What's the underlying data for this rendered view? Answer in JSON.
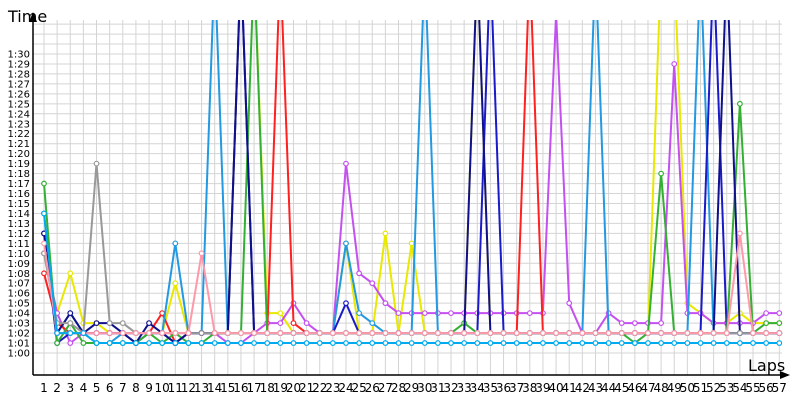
{
  "chart_data": {
    "type": "line",
    "ylabel": "Time",
    "xlabel": "Laps",
    "ylim_seconds": [
      60,
      90
    ],
    "y_ticks": [
      "1:00",
      "1:01",
      "1:02",
      "1:03",
      "1:04",
      "1:05",
      "1:06",
      "1:07",
      "1:08",
      "1:09",
      "1:10",
      "1:11",
      "1:12",
      "1:13",
      "1:14",
      "1:15",
      "1:16",
      "1:17",
      "1:18",
      "1:19",
      "1:20",
      "1:21",
      "1:22",
      "1:23",
      "1:24",
      "1:25",
      "1:26",
      "1:27",
      "1:28",
      "1:29",
      "1:30"
    ],
    "x_ticks": [
      "1",
      "2",
      "3",
      "4",
      "5",
      "6",
      "7",
      "8",
      "9",
      "10",
      "11",
      "12",
      "13",
      "14",
      "15",
      "16",
      "17",
      "18",
      "19",
      "20",
      "21",
      "22",
      "23",
      "24",
      "25",
      "26",
      "27",
      "28",
      "29",
      "30",
      "31",
      "32",
      "33",
      "34",
      "35",
      "36",
      "37",
      "38",
      "39",
      "40",
      "41",
      "42",
      "43",
      "44",
      "45",
      "46",
      "47",
      "48",
      "49",
      "50",
      "51",
      "52",
      "53",
      "54",
      "55",
      "56",
      "57"
    ],
    "grid": true,
    "legend": "none",
    "series": [
      {
        "color": "#e8e800",
        "values": [
          70,
          64,
          68,
          63,
          63,
          62,
          62,
          62,
          62,
          62,
          67,
          62,
          62,
          62,
          62,
          99,
          99,
          64,
          64,
          62,
          62,
          62,
          62,
          71,
          62,
          62,
          72,
          62,
          71,
          62,
          62,
          62,
          62,
          99,
          62,
          62,
          62,
          62,
          62,
          62,
          62,
          62,
          62,
          62,
          62,
          62,
          62,
          99,
          99,
          65,
          64,
          63,
          63,
          64,
          63,
          63,
          63
        ]
      },
      {
        "color": "#c450f0",
        "values": [
          70,
          64,
          61,
          62,
          62,
          62,
          62,
          62,
          62,
          62,
          62,
          62,
          62,
          62,
          61,
          61,
          62,
          63,
          63,
          65,
          63,
          62,
          62,
          79,
          68,
          67,
          65,
          64,
          64,
          64,
          64,
          64,
          64,
          64,
          64,
          64,
          64,
          64,
          64,
          94,
          65,
          62,
          62,
          64,
          63,
          63,
          63,
          63,
          89,
          64,
          64,
          63,
          63,
          63,
          63,
          64,
          64
        ]
      },
      {
        "color": "#ff2020",
        "values": [
          68,
          63,
          62,
          62,
          62,
          62,
          62,
          62,
          62,
          64,
          61,
          62,
          62,
          62,
          62,
          62,
          62,
          62,
          99,
          63,
          62,
          62,
          62,
          62,
          62,
          62,
          62,
          62,
          62,
          62,
          62,
          62,
          62,
          62,
          62,
          62,
          62,
          99,
          62,
          62,
          62,
          62,
          62,
          62,
          62,
          62,
          62,
          62,
          62,
          62,
          62,
          62,
          62,
          62,
          62,
          62,
          62
        ]
      },
      {
        "color": "#2299e0",
        "values": [
          74,
          62,
          64,
          62,
          61,
          61,
          62,
          62,
          62,
          62,
          71,
          62,
          62,
          99,
          62,
          62,
          62,
          62,
          62,
          62,
          62,
          62,
          62,
          71,
          64,
          63,
          62,
          62,
          62,
          99,
          62,
          62,
          62,
          62,
          62,
          62,
          62,
          62,
          62,
          62,
          62,
          62,
          99,
          62,
          62,
          62,
          62,
          62,
          62,
          62,
          99,
          62,
          62,
          62,
          62,
          62,
          62
        ]
      },
      {
        "color": "#1a1ac8",
        "values": [
          72,
          61,
          62,
          62,
          62,
          62,
          62,
          61,
          62,
          62,
          61,
          62,
          62,
          62,
          62,
          99,
          62,
          62,
          62,
          62,
          62,
          62,
          62,
          65,
          62,
          62,
          62,
          62,
          62,
          62,
          62,
          62,
          62,
          62,
          99,
          62,
          62,
          62,
          62,
          62,
          62,
          62,
          62,
          62,
          62,
          62,
          62,
          62,
          62,
          62,
          62,
          99,
          62,
          62,
          62,
          62,
          62
        ]
      },
      {
        "color": "#33b033",
        "values": [
          77,
          61,
          63,
          61,
          61,
          61,
          61,
          61,
          62,
          61,
          62,
          61,
          61,
          62,
          62,
          62,
          99,
          62,
          62,
          62,
          62,
          62,
          62,
          62,
          62,
          62,
          62,
          62,
          62,
          62,
          62,
          62,
          63,
          62,
          62,
          62,
          62,
          62,
          62,
          62,
          62,
          62,
          62,
          62,
          62,
          61,
          62,
          78,
          62,
          62,
          62,
          62,
          62,
          85,
          62,
          63,
          63
        ]
      },
      {
        "color": "#10108a",
        "values": [
          72,
          62,
          64,
          62,
          63,
          63,
          62,
          61,
          63,
          62,
          61,
          62,
          62,
          62,
          62,
          99,
          62,
          62,
          62,
          62,
          62,
          62,
          62,
          62,
          62,
          62,
          62,
          62,
          62,
          62,
          62,
          62,
          62,
          99,
          62,
          62,
          62,
          62,
          62,
          62,
          62,
          62,
          62,
          62,
          62,
          62,
          62,
          62,
          62,
          62,
          62,
          62,
          99,
          62,
          62,
          62,
          62
        ]
      },
      {
        "color": "#999999",
        "values": [
          70,
          63,
          63,
          62,
          79,
          63,
          63,
          62,
          62,
          62,
          62,
          62,
          62,
          62,
          62,
          62,
          62,
          62,
          62,
          62,
          62,
          62,
          62,
          62,
          62,
          62,
          62,
          62,
          62,
          62,
          62,
          62,
          62,
          62,
          62,
          62,
          62,
          62,
          62,
          62,
          62,
          62,
          62,
          62,
          62,
          62,
          62,
          62,
          62,
          62,
          62,
          62,
          62,
          62,
          62,
          62,
          62
        ]
      },
      {
        "color": "#ff99aa",
        "values": [
          71,
          62,
          62,
          62,
          62,
          62,
          62,
          62,
          62,
          62,
          62,
          62,
          70,
          62,
          62,
          62,
          62,
          62,
          62,
          62,
          62,
          62,
          62,
          62,
          62,
          62,
          62,
          62,
          62,
          62,
          62,
          62,
          62,
          62,
          62,
          62,
          62,
          62,
          62,
          62,
          62,
          62,
          62,
          62,
          62,
          62,
          62,
          62,
          62,
          62,
          62,
          62,
          62,
          72,
          62,
          62,
          62
        ]
      },
      {
        "color": "#00aaee",
        "values": [
          74,
          62,
          62,
          62,
          61,
          61,
          61,
          61,
          61,
          61,
          61,
          61,
          61,
          61,
          61,
          61,
          61,
          61,
          61,
          61,
          61,
          61,
          61,
          61,
          61,
          61,
          61,
          61,
          61,
          61,
          61,
          61,
          61,
          61,
          61,
          61,
          61,
          61,
          61,
          61,
          61,
          61,
          61,
          61,
          61,
          61,
          61,
          61,
          61,
          61,
          61,
          61,
          61,
          61,
          61,
          61,
          61
        ]
      }
    ]
  }
}
